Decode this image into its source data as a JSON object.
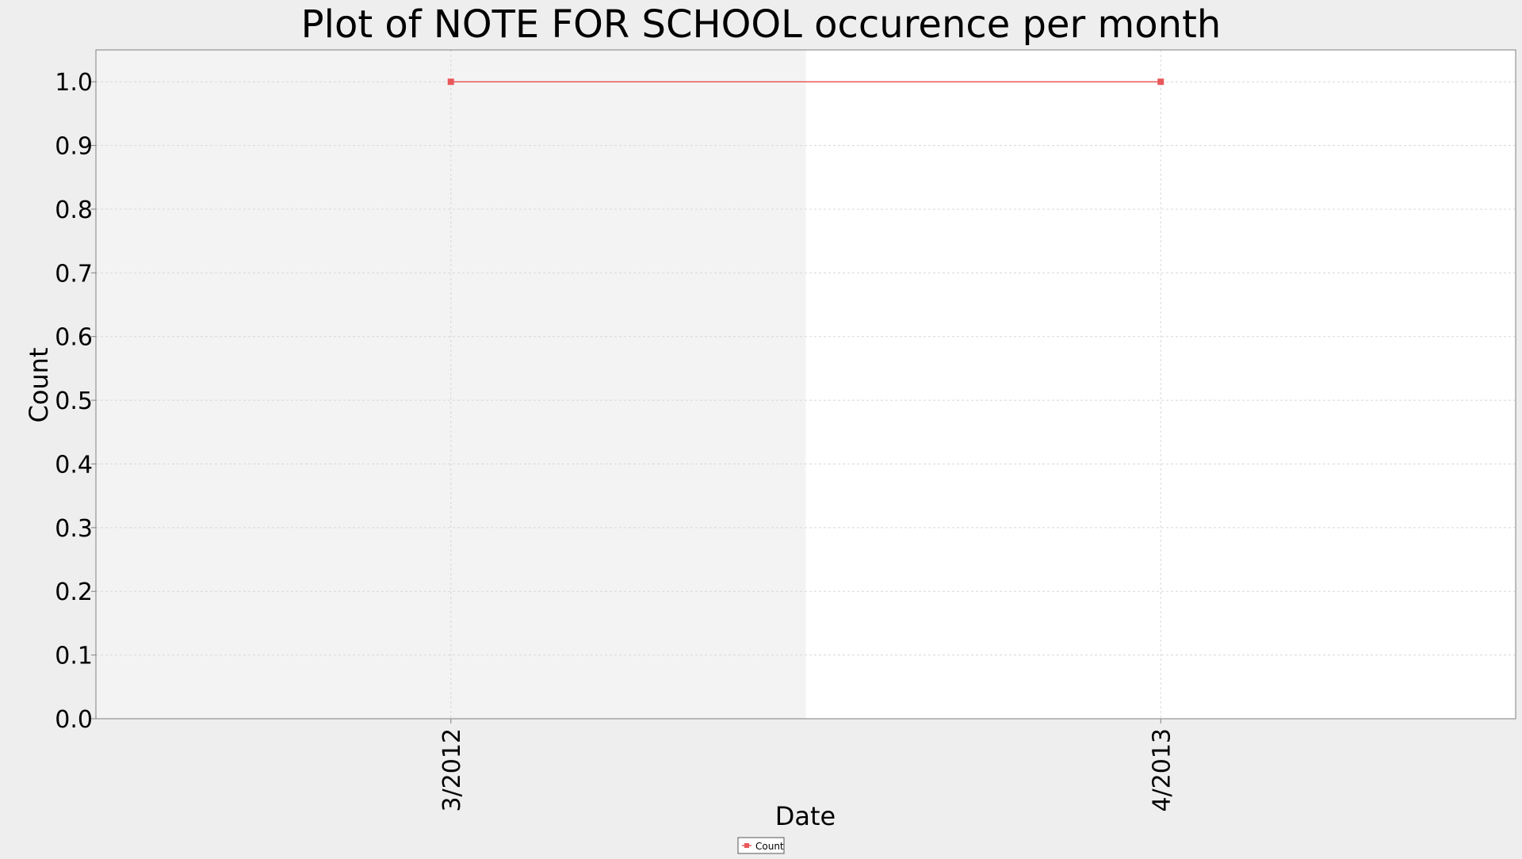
{
  "chart_data": {
    "type": "line",
    "title": "Plot of NOTE FOR SCHOOL occurence per month",
    "xlabel": "Date",
    "ylabel": "Count",
    "categories": [
      "3/2012",
      "4/2013"
    ],
    "series": [
      {
        "name": "Count",
        "values": [
          1.0,
          1.0
        ],
        "color": "#e8585a"
      }
    ],
    "ylim": [
      0.0,
      1.05
    ],
    "yticks": [
      "0.0",
      "0.1",
      "0.2",
      "0.3",
      "0.4",
      "0.5",
      "0.6",
      "0.7",
      "0.8",
      "0.9",
      "1.0"
    ],
    "grid": true,
    "legend": {
      "placement": "bottom-center",
      "entries": [
        "Count"
      ]
    },
    "colors": {
      "background": "#eeeeee",
      "plot_band_alt": "#f3f3f3",
      "plot_band": "#ffffff",
      "grid": "#d8d8d8",
      "series": "#e8585a"
    }
  }
}
